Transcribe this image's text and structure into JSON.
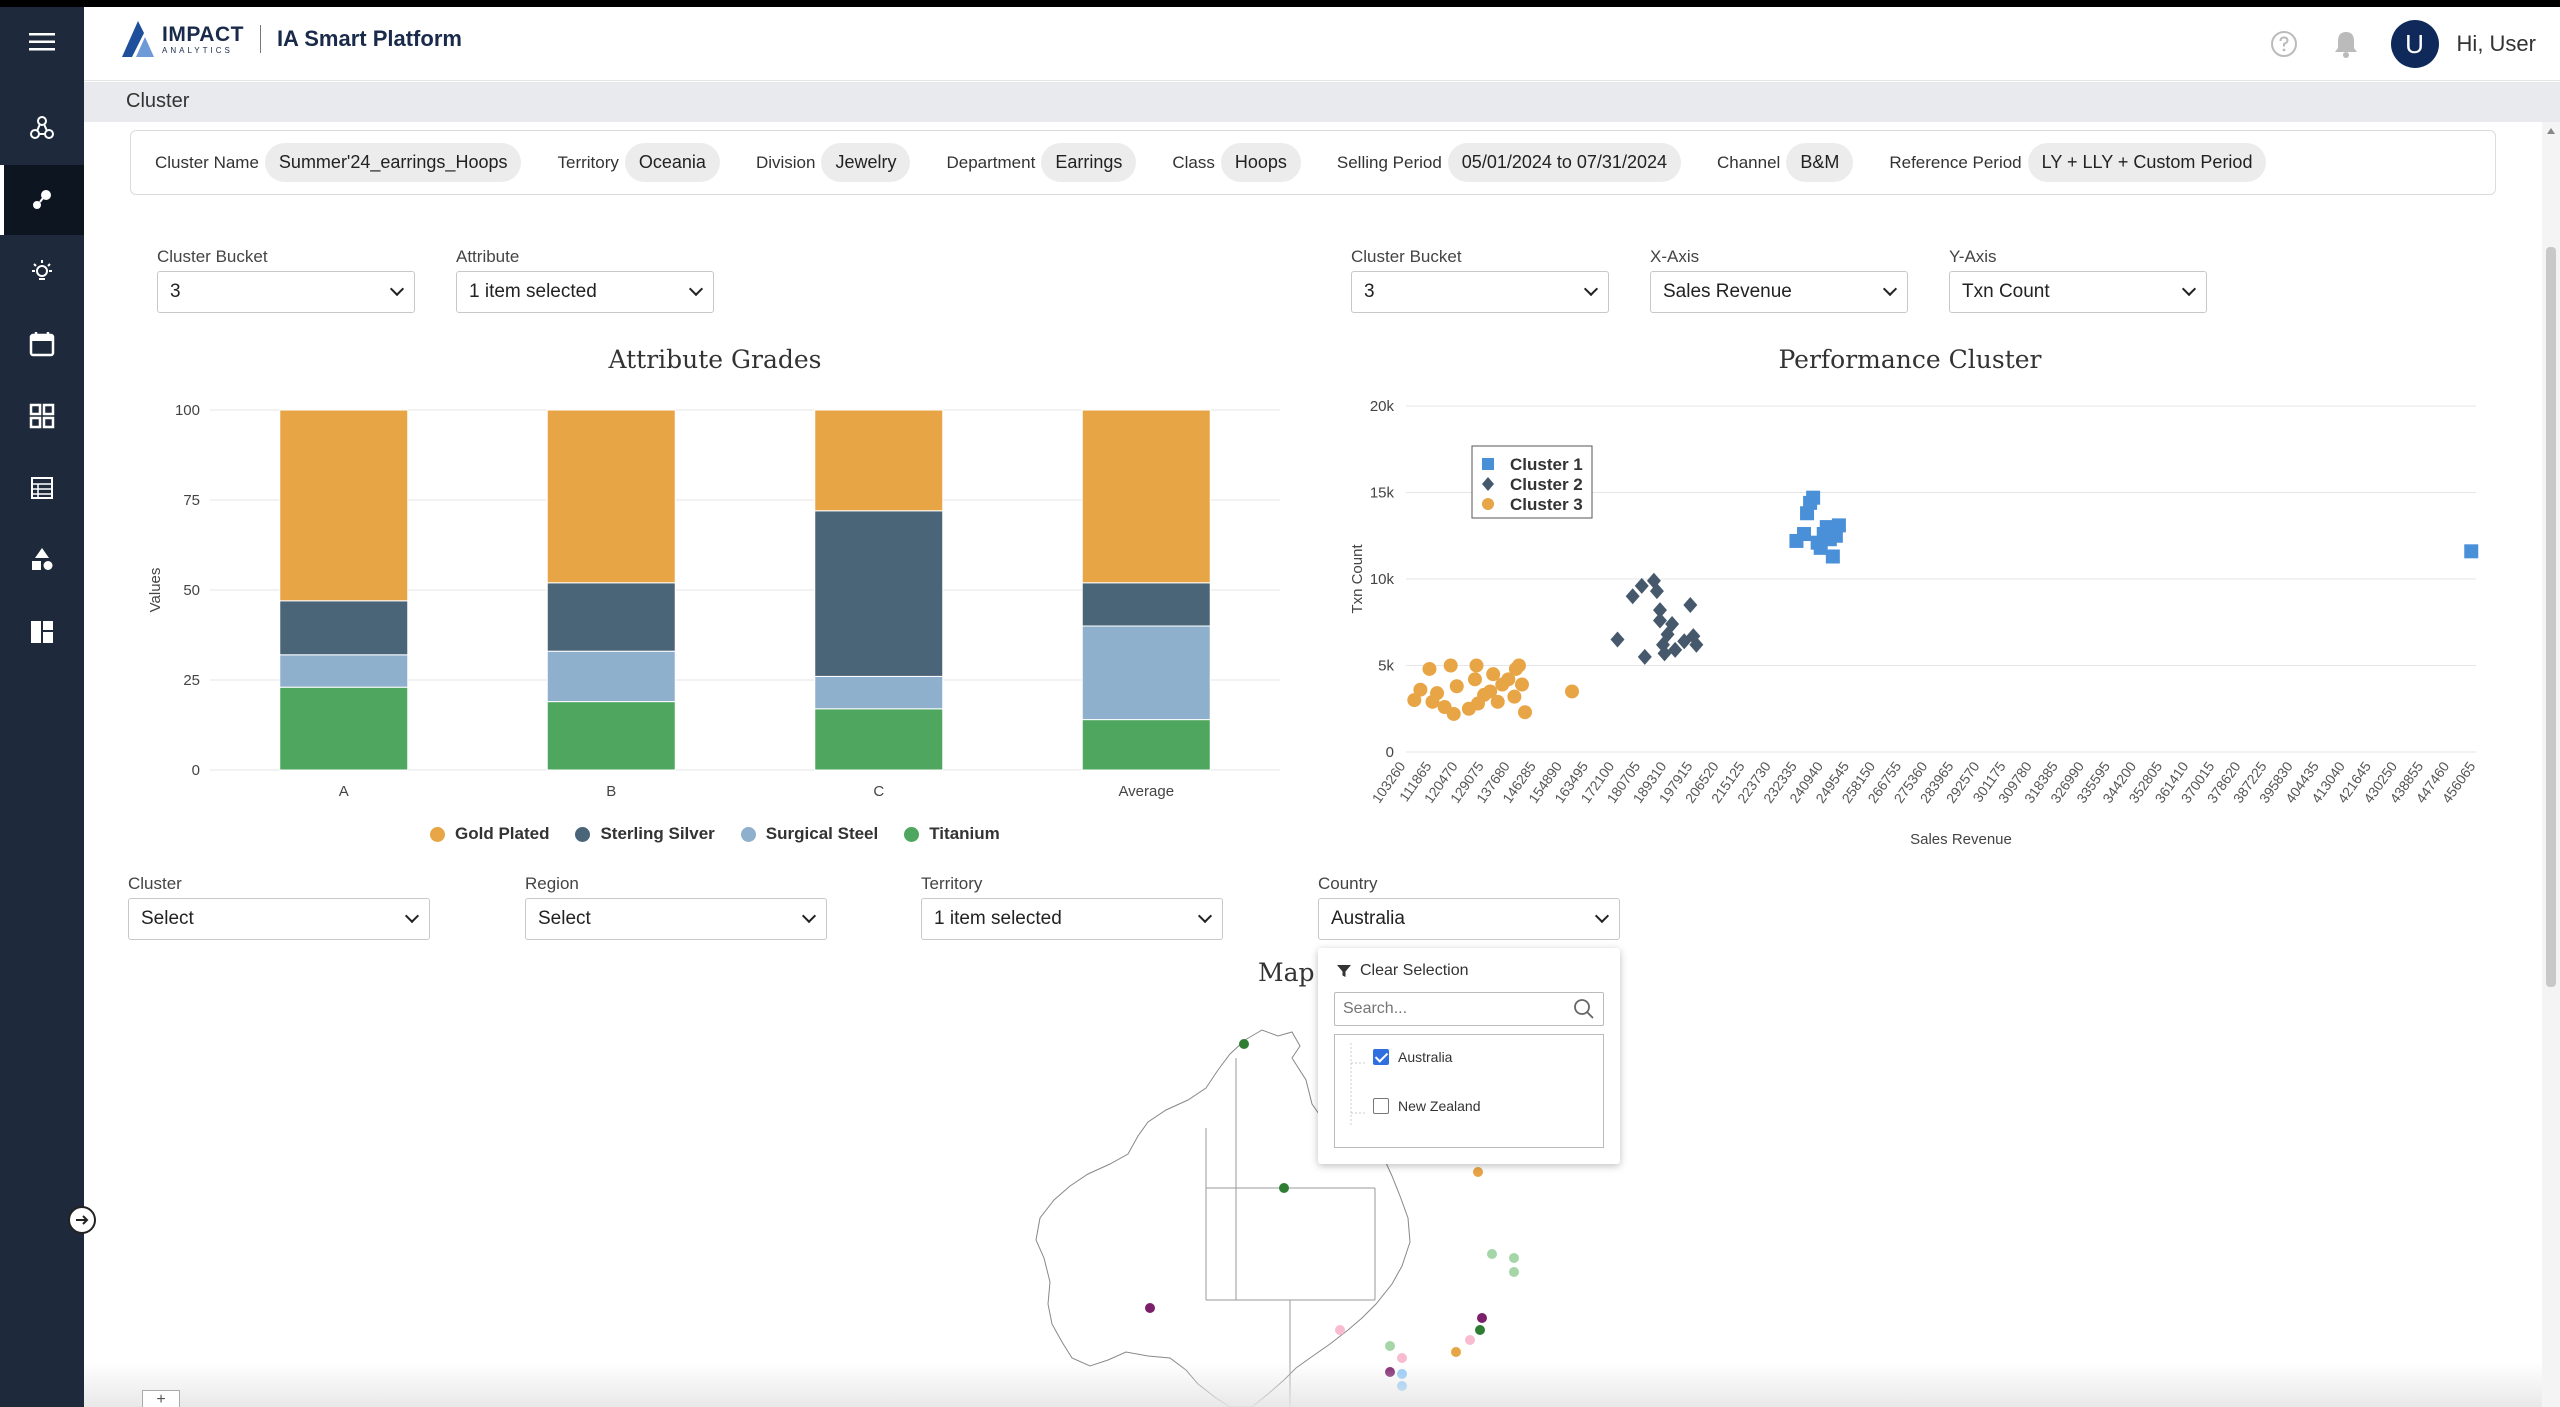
{
  "header": {
    "logo_main": "IMPACT",
    "logo_sub": "ANALYTICS",
    "app_title": "IA Smart Platform",
    "avatar_initial": "U",
    "greeting": "Hi, User"
  },
  "breadcrumb": "Cluster",
  "sidebar": {
    "items": [
      "menu-icon",
      "network-icon",
      "cluster-icon",
      "bulb-icon",
      "calendar-icon",
      "grid-icon",
      "table-icon",
      "shapes-icon",
      "dashboard-icon"
    ],
    "active_index": 2
  },
  "info": [
    {
      "label": "Cluster Name",
      "value": "Summer'24_earrings_Hoops"
    },
    {
      "label": "Territory",
      "value": "Oceania"
    },
    {
      "label": "Division",
      "value": "Jewelry"
    },
    {
      "label": "Department",
      "value": "Earrings"
    },
    {
      "label": "Class",
      "value": "Hoops"
    },
    {
      "label": "Selling Period",
      "value": "05/01/2024 to 07/31/2024"
    },
    {
      "label": "Channel",
      "value": "B&M"
    },
    {
      "label": "Reference Period",
      "value": "LY + LLY + Custom Period"
    }
  ],
  "left_controls": {
    "bucket_label": "Cluster Bucket",
    "bucket_value": "3",
    "attr_label": "Attribute",
    "attr_value": "1 item selected"
  },
  "right_controls": {
    "bucket_label": "Cluster Bucket",
    "bucket_value": "3",
    "x_label": "X-Axis",
    "x_value": "Sales Revenue",
    "y_label": "Y-Axis",
    "y_value": "Txn Count"
  },
  "filters": {
    "cluster_label": "Cluster",
    "cluster_value": "Select",
    "region_label": "Region",
    "region_value": "Select",
    "territory_label": "Territory",
    "territory_value": "1 item selected",
    "country_label": "Country",
    "country_value": "Australia"
  },
  "dropdown": {
    "clear": "Clear Selection",
    "search_placeholder": "Search...",
    "options": [
      {
        "label": "Australia",
        "checked": true
      },
      {
        "label": "New Zealand",
        "checked": false
      }
    ]
  },
  "map_title": "Map V",
  "chart_data": [
    {
      "type": "bar",
      "stacked": true,
      "title": "Attribute Grades",
      "ylabel": "Values",
      "xlabel": "",
      "ylim": [
        0,
        100
      ],
      "yticks": [
        0,
        25,
        50,
        75,
        100
      ],
      "categories": [
        "A",
        "B",
        "C",
        "Average"
      ],
      "series": [
        {
          "name": "Titanium",
          "color": "#4fa65e",
          "values": [
            23,
            19,
            17,
            14
          ]
        },
        {
          "name": "Surgical Steel",
          "color": "#8fb0cc",
          "values": [
            9,
            14,
            9,
            26
          ]
        },
        {
          "name": "Sterling Silver",
          "color": "#4a6478",
          "values": [
            15,
            19,
            46,
            12
          ]
        },
        {
          "name": "Gold Plated",
          "color": "#e8a546",
          "values": [
            53,
            48,
            28,
            48
          ]
        }
      ],
      "legend": [
        "Gold Plated",
        "Sterling Silver",
        "Surgical Steel",
        "Titanium"
      ],
      "grid": true
    },
    {
      "type": "scatter",
      "title": "Performance Cluster",
      "xlabel": "Sales Revenue",
      "ylabel": "Txn Count",
      "ylim": [
        0,
        20000
      ],
      "yticks": [
        0,
        5000,
        10000,
        15000,
        20000
      ],
      "ytick_labels": [
        "0",
        "5k",
        "10k",
        "15k",
        "20k"
      ],
      "xlim": [
        103260,
        456065
      ],
      "xticks": [
        103260,
        111865,
        120470,
        129075,
        137680,
        146285,
        154890,
        163495,
        172100,
        180705,
        189310,
        197915,
        206520,
        215125,
        223730,
        232335,
        240940,
        249545,
        258150,
        266755,
        275360,
        283965,
        292570,
        301175,
        309780,
        318385,
        326990,
        335595,
        344200,
        352805,
        361410,
        370015,
        378620,
        387225,
        395830,
        404435,
        413040,
        421645,
        430250,
        438855,
        447460,
        456065
      ],
      "legend_position": "top-left",
      "series": [
        {
          "name": "Cluster 3",
          "color": "#e8a546",
          "marker": "circle",
          "points": [
            [
              106000,
              3000
            ],
            [
              108000,
              3600
            ],
            [
              111000,
              4800
            ],
            [
              112000,
              2900
            ],
            [
              113500,
              3400
            ],
            [
              116000,
              2600
            ],
            [
              118000,
              5000
            ],
            [
              119000,
              2200
            ],
            [
              120000,
              3800
            ],
            [
              124000,
              2500
            ],
            [
              126000,
              4200
            ],
            [
              126500,
              5000
            ],
            [
              127000,
              2800
            ],
            [
              129000,
              3300
            ],
            [
              131000,
              3500
            ],
            [
              132000,
              4500
            ],
            [
              133500,
              2900
            ],
            [
              135000,
              3900
            ],
            [
              137000,
              4200
            ],
            [
              139000,
              3200
            ],
            [
              139500,
              4800
            ],
            [
              140500,
              5000
            ],
            [
              141500,
              3900
            ],
            [
              142500,
              2300
            ],
            [
              158000,
              3500
            ]
          ]
        },
        {
          "name": "Cluster 2",
          "color": "#46596c",
          "marker": "diamond",
          "points": [
            [
              173000,
              6500
            ],
            [
              178000,
              9000
            ],
            [
              181000,
              9600
            ],
            [
              182000,
              5500
            ],
            [
              185000,
              9900
            ],
            [
              186000,
              9300
            ],
            [
              187000,
              7600
            ],
            [
              187000,
              8200
            ],
            [
              188000,
              6200
            ],
            [
              188500,
              5700
            ],
            [
              189500,
              6800
            ],
            [
              191000,
              7400
            ],
            [
              192000,
              5900
            ],
            [
              195000,
              6400
            ],
            [
              197000,
              8500
            ],
            [
              198000,
              6700
            ],
            [
              199000,
              6200
            ]
          ]
        },
        {
          "name": "Cluster 1",
          "color": "#4a90d8",
          "marker": "square",
          "points": [
            [
              232000,
              12200
            ],
            [
              234500,
              12600
            ],
            [
              235500,
              13800
            ],
            [
              236500,
              14400
            ],
            [
              237500,
              14700
            ],
            [
              239000,
              12100
            ],
            [
              240000,
              11800
            ],
            [
              241000,
              12600
            ],
            [
              242000,
              13000
            ],
            [
              243000,
              12300
            ],
            [
              244000,
              11300
            ],
            [
              245000,
              12500
            ],
            [
              246000,
              13100
            ],
            [
              454500,
              11600
            ]
          ]
        }
      ],
      "grid": true
    }
  ]
}
